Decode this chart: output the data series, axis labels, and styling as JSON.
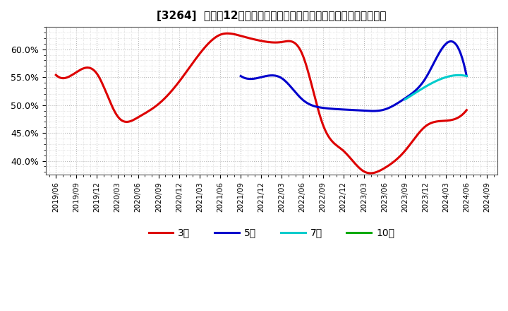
{
  "title": "[3264]  売上高12か月移動合計の対前年同期増減率の標準偏差の推移",
  "background_color": "#ffffff",
  "plot_background_color": "#ffffff",
  "grid_color": "#bbbbbb",
  "ylim": [
    0.375,
    0.64
  ],
  "yticks": [
    0.4,
    0.45,
    0.5,
    0.55,
    0.6
  ],
  "ytick_labels": [
    "40.0%",
    "45.0%",
    "50.0%",
    "55.0%",
    "60.0%"
  ],
  "series": {
    "3年": {
      "color": "#dd0000",
      "linewidth": 2.2,
      "dates": [
        "2019/06",
        "2019/09",
        "2019/12",
        "2020/03",
        "2020/06",
        "2020/09",
        "2020/12",
        "2021/03",
        "2021/06",
        "2021/09",
        "2021/12",
        "2022/03",
        "2022/06",
        "2022/09",
        "2022/12",
        "2023/03",
        "2023/06",
        "2023/09",
        "2023/12",
        "2024/03",
        "2024/06"
      ],
      "values": [
        0.554,
        0.559,
        0.556,
        0.48,
        0.478,
        0.502,
        0.542,
        0.592,
        0.626,
        0.624,
        0.615,
        0.613,
        0.591,
        0.465,
        0.418,
        0.381,
        0.387,
        0.418,
        0.462,
        0.472,
        0.491
      ]
    },
    "5年": {
      "color": "#0000cc",
      "linewidth": 2.2,
      "dates": [
        "2021/09",
        "2021/12",
        "2022/03",
        "2022/06",
        "2022/09",
        "2022/12",
        "2023/03",
        "2023/06",
        "2023/09",
        "2023/12",
        "2024/03",
        "2024/06"
      ],
      "values": [
        0.552,
        0.55,
        0.548,
        0.51,
        0.495,
        0.492,
        0.49,
        0.492,
        0.512,
        0.548,
        0.61,
        0.552
      ]
    },
    "7年": {
      "color": "#00cccc",
      "linewidth": 2.2,
      "dates": [
        "2023/09",
        "2023/12",
        "2024/03",
        "2024/06"
      ],
      "values": [
        0.51,
        0.533,
        0.55,
        0.552
      ]
    },
    "10年": {
      "color": "#00aa00",
      "linewidth": 2.2,
      "dates": [],
      "values": []
    }
  },
  "legend_labels": [
    "3年",
    "5年",
    "7年",
    "10年"
  ],
  "legend_colors": [
    "#dd0000",
    "#0000cc",
    "#00cccc",
    "#00aa00"
  ],
  "xticklabels": [
    "2019/06",
    "2019/09",
    "2019/12",
    "2020/03",
    "2020/06",
    "2020/09",
    "2020/12",
    "2021/03",
    "2021/06",
    "2021/09",
    "2021/12",
    "2022/03",
    "2022/06",
    "2022/09",
    "2022/12",
    "2023/03",
    "2023/06",
    "2023/09",
    "2023/12",
    "2024/03",
    "2024/06",
    "2024/09"
  ]
}
